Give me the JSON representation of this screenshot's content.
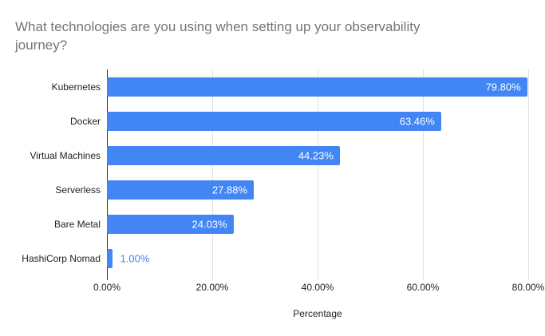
{
  "title_lines": [
    "What technologies are you using when setting up your observability",
    "journey?"
  ],
  "colors": {
    "bar": "#4285f4",
    "title_text": "#757575",
    "axis_text": "#1f1f1f",
    "gridline": "#e0e0e0",
    "axis_line": "#333333",
    "value_inside": "#ffffff",
    "value_outside": "#4285f4",
    "background": "#ffffff"
  },
  "chart_data": {
    "type": "bar",
    "orientation": "horizontal",
    "title": "What technologies are you using when setting up your observability journey?",
    "categories": [
      "Kubernetes",
      "Docker",
      "Virtual Machines",
      "Serverless",
      "Bare Metal",
      "HashiCorp Nomad"
    ],
    "values": [
      79.8,
      63.46,
      44.23,
      27.88,
      24.03,
      1.0
    ],
    "value_labels": [
      "79.80%",
      "63.46%",
      "44.23%",
      "27.88%",
      "24.03%",
      "1.00%"
    ],
    "xlabel": "Percentage",
    "ylabel": "",
    "xlim": [
      0,
      80
    ],
    "x_tick_values": [
      0,
      20,
      40,
      60,
      80
    ],
    "x_tick_labels": [
      "0.00%",
      "20.00%",
      "40.00%",
      "60.00%",
      "80.00%"
    ],
    "grid": true,
    "legend_position": "none"
  }
}
